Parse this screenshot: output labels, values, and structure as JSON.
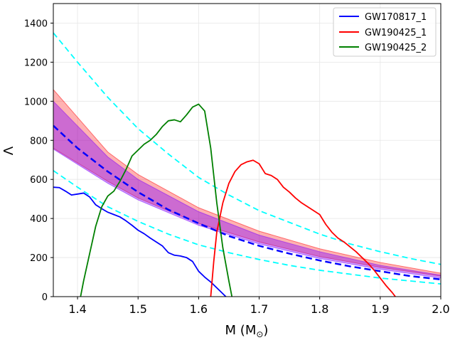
{
  "chart_data": {
    "type": "line",
    "title": "",
    "xlabel": "M (M",
    "xlabel_sub": "⊙",
    "xlabel_close": ")",
    "ylabel": "Λ",
    "xlim": [
      1.36,
      2.0
    ],
    "ylim": [
      0,
      1500
    ],
    "xticks": [
      1.4,
      1.5,
      1.6,
      1.7,
      1.8,
      1.9,
      2.0
    ],
    "xtick_labels": [
      "1.4",
      "1.5",
      "1.6",
      "1.7",
      "1.8",
      "1.9",
      "2.0"
    ],
    "yticks": [
      0,
      200,
      400,
      600,
      800,
      1000,
      1200,
      1400
    ],
    "ytick_labels": [
      "0",
      "200",
      "400",
      "600",
      "800",
      "1000",
      "1200",
      "1400"
    ],
    "grid": true,
    "legend_position": "top-right",
    "legend": [
      {
        "label": "GW170817_1",
        "color": "#0000ff"
      },
      {
        "label": "GW190425_1",
        "color": "#ff0000"
      },
      {
        "label": "GW190425_2",
        "color": "#008000"
      }
    ],
    "bands": [
      {
        "name": "pink-band",
        "color": "#ff0000",
        "opacity": 0.3,
        "x": [
          1.36,
          1.45,
          1.5,
          1.6,
          1.7,
          1.8,
          1.9,
          2.0
        ],
        "lower": [
          760,
          590,
          505,
          375,
          280,
          205,
          150,
          105
        ],
        "upper": [
          1060,
          740,
          625,
          455,
          335,
          245,
          175,
          120
        ]
      },
      {
        "name": "purple-band",
        "color": "#7f00ff",
        "opacity": 0.4,
        "x": [
          1.36,
          1.45,
          1.5,
          1.6,
          1.7,
          1.8,
          1.9,
          2.0
        ],
        "lower": [
          755,
          580,
          495,
          365,
          270,
          195,
          140,
          95
        ],
        "upper": [
          1000,
          715,
          600,
          435,
          315,
          230,
          160,
          110
        ]
      }
    ],
    "series": [
      {
        "name": "cyan-upper",
        "color": "#00ffff",
        "dashed": true,
        "x": [
          1.36,
          1.4,
          1.45,
          1.5,
          1.55,
          1.6,
          1.65,
          1.7,
          1.75,
          1.8,
          1.85,
          1.9,
          1.95,
          2.0
        ],
        "y": [
          1350,
          1200,
          1020,
          860,
          730,
          610,
          520,
          440,
          380,
          320,
          270,
          230,
          195,
          165
        ]
      },
      {
        "name": "cyan-lower",
        "color": "#00ffff",
        "dashed": true,
        "x": [
          1.36,
          1.4,
          1.45,
          1.5,
          1.55,
          1.6,
          1.65,
          1.7,
          1.75,
          1.8,
          1.85,
          1.9,
          1.95,
          2.0
        ],
        "y": [
          645,
          560,
          460,
          385,
          320,
          265,
          225,
          190,
          160,
          135,
          115,
          95,
          80,
          65
        ]
      },
      {
        "name": "blue-median",
        "color": "#0000ff",
        "dashed": true,
        "thick": true,
        "x": [
          1.36,
          1.4,
          1.45,
          1.5,
          1.55,
          1.6,
          1.65,
          1.7,
          1.75,
          1.8,
          1.85,
          1.9,
          1.95,
          2.0
        ],
        "y": [
          875,
          760,
          640,
          535,
          445,
          375,
          310,
          260,
          220,
          185,
          155,
          130,
          105,
          88
        ]
      },
      {
        "name": "GW170817_1",
        "color": "#0000ff",
        "dashed": false,
        "x": [
          1.36,
          1.37,
          1.38,
          1.39,
          1.4,
          1.41,
          1.42,
          1.43,
          1.44,
          1.45,
          1.46,
          1.47,
          1.48,
          1.49,
          1.5,
          1.51,
          1.52,
          1.53,
          1.54,
          1.55,
          1.56,
          1.57,
          1.58,
          1.59,
          1.6,
          1.61,
          1.62,
          1.63,
          1.64,
          1.645
        ],
        "y": [
          560,
          558,
          540,
          520,
          525,
          530,
          510,
          470,
          450,
          432,
          420,
          408,
          388,
          365,
          340,
          322,
          300,
          280,
          260,
          225,
          212,
          208,
          200,
          180,
          130,
          100,
          75,
          45,
          15,
          0
        ]
      },
      {
        "name": "GW190425_1",
        "color": "#ff0000",
        "dashed": false,
        "x": [
          1.62,
          1.625,
          1.63,
          1.64,
          1.65,
          1.66,
          1.67,
          1.68,
          1.69,
          1.7,
          1.71,
          1.72,
          1.73,
          1.74,
          1.75,
          1.76,
          1.77,
          1.78,
          1.79,
          1.8,
          1.81,
          1.82,
          1.83,
          1.84,
          1.85,
          1.86,
          1.87,
          1.88,
          1.89,
          1.9,
          1.91,
          1.92,
          1.925
        ],
        "y": [
          0,
          180,
          330,
          480,
          580,
          640,
          675,
          690,
          698,
          680,
          630,
          620,
          600,
          560,
          535,
          505,
          480,
          460,
          440,
          420,
          370,
          330,
          300,
          280,
          255,
          230,
          200,
          170,
          135,
          95,
          55,
          20,
          0
        ]
      },
      {
        "name": "GW190425_2",
        "color": "#008000",
        "dashed": false,
        "x": [
          1.405,
          1.41,
          1.42,
          1.43,
          1.44,
          1.45,
          1.46,
          1.47,
          1.48,
          1.49,
          1.5,
          1.51,
          1.52,
          1.53,
          1.54,
          1.55,
          1.56,
          1.57,
          1.58,
          1.59,
          1.6,
          1.61,
          1.62,
          1.63,
          1.64,
          1.65,
          1.655
        ],
        "y": [
          0,
          80,
          220,
          360,
          460,
          515,
          540,
          590,
          650,
          720,
          750,
          780,
          800,
          830,
          870,
          900,
          905,
          895,
          930,
          970,
          985,
          950,
          760,
          480,
          250,
          80,
          0
        ]
      }
    ]
  }
}
